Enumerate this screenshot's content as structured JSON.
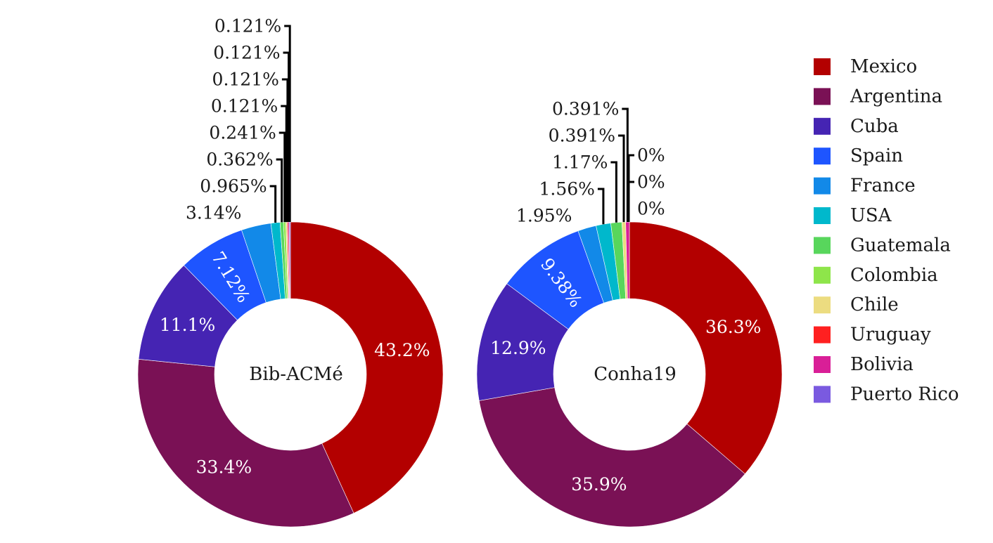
{
  "chart_data": {
    "type": "pie",
    "variant": "donut",
    "legend": {
      "placement": "right",
      "items": [
        {
          "name": "Mexico",
          "color": "#b30000"
        },
        {
          "name": "Argentina",
          "color": "#7a1155"
        },
        {
          "name": "Cuba",
          "color": "#4524b3"
        },
        {
          "name": "Spain",
          "color": "#1e55ff"
        },
        {
          "name": "France",
          "color": "#1289e8"
        },
        {
          "name": "USA",
          "color": "#00b8cc"
        },
        {
          "name": "Guatemala",
          "color": "#58d65c"
        },
        {
          "name": "Colombia",
          "color": "#8ee54a"
        },
        {
          "name": "Chile",
          "color": "#ecdc80"
        },
        {
          "name": "Uruguay",
          "color": "#ff2020"
        },
        {
          "name": "Bolivia",
          "color": "#d91f97"
        },
        {
          "name": "Puerto Rico",
          "color": "#7a5ae0"
        }
      ]
    },
    "charts": [
      {
        "center_label": "Bib-ACMé",
        "slices": [
          {
            "name": "Mexico",
            "value": 43.2,
            "label": "43.2%"
          },
          {
            "name": "Argentina",
            "value": 33.4,
            "label": "33.4%"
          },
          {
            "name": "Cuba",
            "value": 11.1,
            "label": "11.1%"
          },
          {
            "name": "Spain",
            "value": 7.12,
            "label": "7.12%"
          },
          {
            "name": "France",
            "value": 3.14,
            "label": "3.14%"
          },
          {
            "name": "USA",
            "value": 0.965,
            "label": "0.965%"
          },
          {
            "name": "Guatemala",
            "value": 0.362,
            "label": "0.362%"
          },
          {
            "name": "Colombia",
            "value": 0.241,
            "label": "0.241%"
          },
          {
            "name": "Chile",
            "value": 0.121,
            "label": "0.121%"
          },
          {
            "name": "Uruguay",
            "value": 0.121,
            "label": "0.121%"
          },
          {
            "name": "Bolivia",
            "value": 0.121,
            "label": "0.121%"
          },
          {
            "name": "Puerto Rico",
            "value": 0.121,
            "label": "0.121%"
          }
        ]
      },
      {
        "center_label": "Conha19",
        "slices": [
          {
            "name": "Mexico",
            "value": 36.3,
            "label": "36.3%"
          },
          {
            "name": "Argentina",
            "value": 35.9,
            "label": "35.9%"
          },
          {
            "name": "Cuba",
            "value": 12.9,
            "label": "12.9%"
          },
          {
            "name": "Spain",
            "value": 9.38,
            "label": "9.38%"
          },
          {
            "name": "France",
            "value": 1.95,
            "label": "1.95%"
          },
          {
            "name": "USA",
            "value": 1.56,
            "label": "1.56%"
          },
          {
            "name": "Guatemala",
            "value": 1.17,
            "label": "1.17%"
          },
          {
            "name": "Chile",
            "value": 0.391,
            "label": "0.391%"
          },
          {
            "name": "Bolivia",
            "value": 0.391,
            "label": "0.391%"
          },
          {
            "name": "Colombia",
            "value": 0,
            "label": "0%"
          },
          {
            "name": "Uruguay",
            "value": 0,
            "label": "0%"
          },
          {
            "name": "Puerto Rico",
            "value": 0,
            "label": "0%"
          }
        ]
      }
    ]
  }
}
